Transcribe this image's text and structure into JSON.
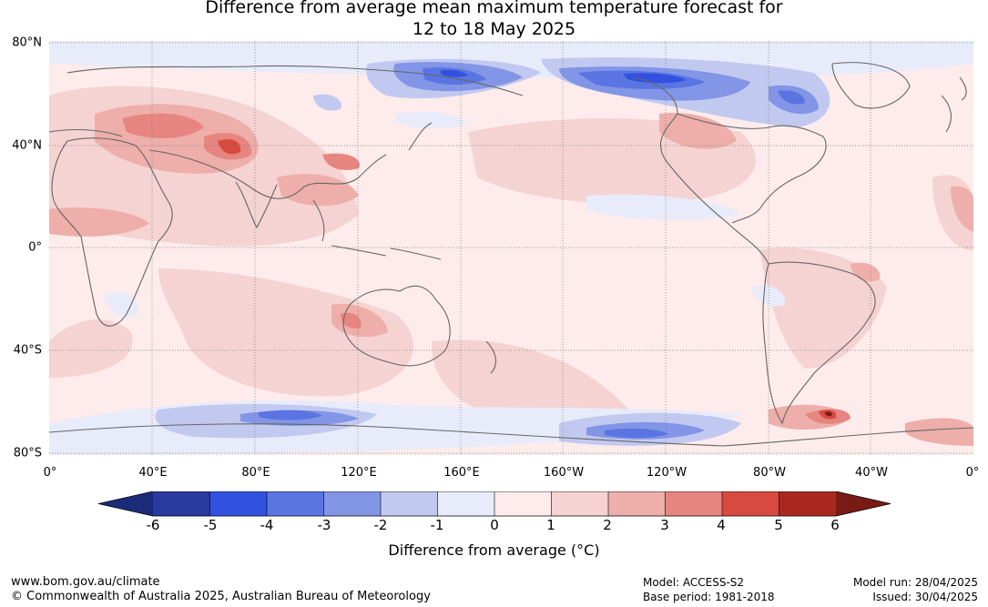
{
  "title": {
    "line1": "Difference from average mean maximum temperature forecast for",
    "line2": "12 to 18 May 2025"
  },
  "map": {
    "lat_labels": [
      "80°N",
      "40°N",
      "0°",
      "40°S",
      "80°S"
    ],
    "lon_labels": [
      "0°",
      "40°E",
      "80°E",
      "120°E",
      "160°E",
      "160°W",
      "120°W",
      "80°W",
      "40°W",
      "0°"
    ]
  },
  "colorbar": {
    "ticks": [
      "-6",
      "-5",
      "-4",
      "-3",
      "-2",
      "-1",
      "0",
      "1",
      "2",
      "3",
      "4",
      "5",
      "6"
    ],
    "colors": [
      "#2b3a9f",
      "#3152e0",
      "#5a75e2",
      "#8295e6",
      "#c2c9f0",
      "#e8ebfa",
      "#fdeceb",
      "#f5d3d2",
      "#eeaeaa",
      "#e78580",
      "#d84a40",
      "#a9291f"
    ],
    "min_color": "#1c2a7a",
    "max_color": "#7a1a15",
    "caption": "Difference from average (°C)"
  },
  "footer": {
    "url": "www.bom.gov.au/climate",
    "copyright": "© Commonwealth of Australia 2025, Australian Bureau of Meteorology",
    "model": "Model: ACCESS-S2",
    "base_period": "Base period: 1981-2018",
    "model_run": "Model run: 28/04/2025",
    "issued": "Issued: 30/04/2025"
  }
}
